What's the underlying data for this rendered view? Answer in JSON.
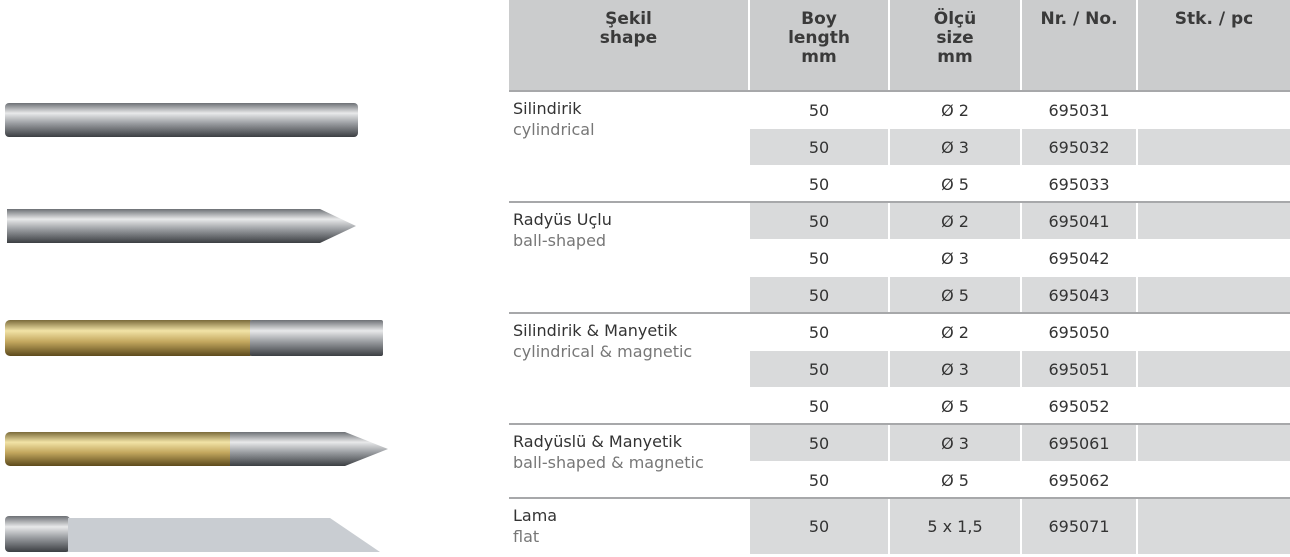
{
  "header": {
    "columns": [
      [
        "Şekil",
        "shape"
      ],
      [
        "Boy",
        "length",
        "mm"
      ],
      [
        "Ölçü",
        "size",
        "mm"
      ],
      [
        "Nr. / No."
      ],
      [
        "Stk. / pc"
      ]
    ]
  },
  "groups": [
    {
      "name": "Silindirik",
      "name_en": "cylindrical",
      "rows": [
        {
          "length": 50,
          "size": "Ø 2",
          "number": "695031"
        },
        {
          "length": 50,
          "size": "Ø 3",
          "number": "695032"
        },
        {
          "length": 50,
          "size": "Ø 5",
          "number": "695033"
        }
      ]
    },
    {
      "name": "Radyüs Uçlu",
      "name_en": "ball-shaped",
      "rows": [
        {
          "length": 50,
          "size": "Ø 2",
          "number": "695041"
        },
        {
          "length": 50,
          "size": "Ø 3",
          "number": "695042"
        },
        {
          "length": 50,
          "size": "Ø 5",
          "number": "695043"
        }
      ]
    },
    {
      "name": "Silindirik & Manyetik",
      "name_en": "cylindrical & magnetic",
      "rows": [
        {
          "length": 50,
          "size": "Ø 2",
          "number": "695050"
        },
        {
          "length": 50,
          "size": "Ø 3",
          "number": "695051"
        },
        {
          "length": 50,
          "size": "Ø 5",
          "number": "695052"
        }
      ]
    },
    {
      "name": "Radyüslü & Manyetik",
      "name_en": "ball-shaped & magnetic",
      "rows": [
        {
          "length": 50,
          "size": "Ø 3",
          "number": "695061"
        },
        {
          "length": 50,
          "size": "Ø 5",
          "number": "695062"
        }
      ]
    },
    {
      "name": "Lama",
      "name_en": "flat",
      "rows": [
        {
          "length": 50,
          "size": "5 x 1,5",
          "number": "695071"
        }
      ]
    }
  ]
}
